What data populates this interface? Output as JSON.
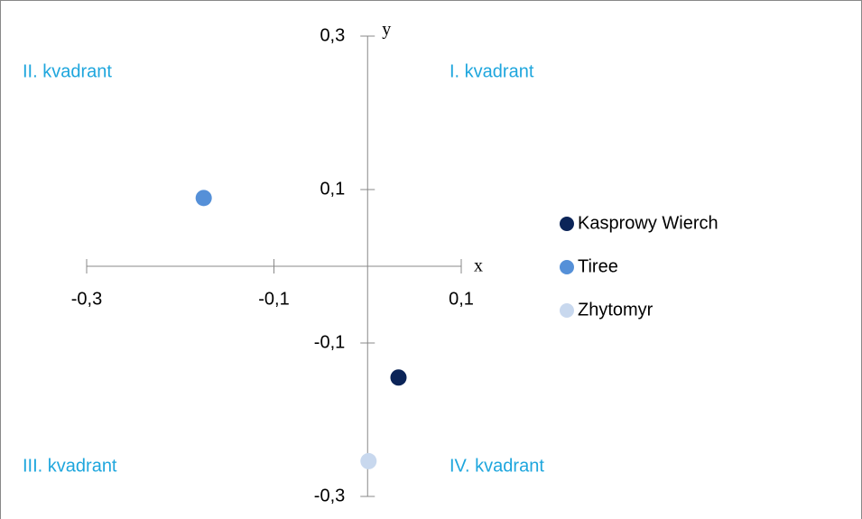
{
  "chart_data": {
    "type": "scatter",
    "x_label": "x",
    "y_label": "y",
    "annotations": [
      "II. kvadrant",
      "I. kvadrant",
      "III. kvadrant",
      "IV. kvadrant"
    ],
    "annotation_color": "#1ea6dd",
    "series": [
      {
        "name": "Kasprowy Wierch",
        "color": "#0b2458",
        "x": [
          0.033
        ],
        "values": [
          -0.145
        ]
      },
      {
        "name": "Tiree",
        "color": "#5590d8",
        "x": [
          -0.175
        ],
        "values": [
          0.089
        ]
      },
      {
        "name": "Zhytomyr",
        "color": "#c8d8ee",
        "x": [
          0.001
        ],
        "values": [
          -0.254
        ]
      }
    ],
    "xlim": [
      -0.3,
      0.1
    ],
    "ylim": [
      -0.3,
      0.3
    ],
    "xticks": [
      {
        "value": -0.3,
        "label": "-0,3"
      },
      {
        "value": -0.1,
        "label": "-0,1"
      },
      {
        "value": 0.1,
        "label": "0,1"
      }
    ],
    "yticks": [
      {
        "value": 0.3,
        "label": "0,3"
      },
      {
        "value": 0.1,
        "label": "0,1"
      },
      {
        "value": -0.1,
        "label": "-0,1"
      },
      {
        "value": -0.3,
        "label": "-0,3"
      }
    ],
    "legend": "right",
    "grid": false
  }
}
